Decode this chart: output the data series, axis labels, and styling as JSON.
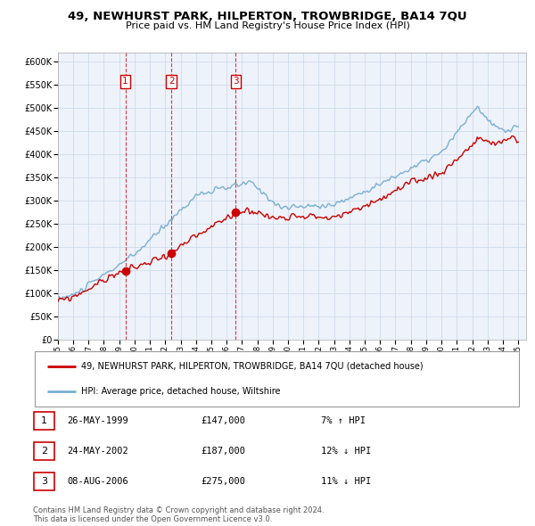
{
  "title": "49, NEWHURST PARK, HILPERTON, TROWBRIDGE, BA14 7QU",
  "subtitle": "Price paid vs. HM Land Registry's House Price Index (HPI)",
  "plot_background": "#eef2fa",
  "ylim": [
    0,
    620000
  ],
  "yticks": [
    0,
    50000,
    100000,
    150000,
    200000,
    250000,
    300000,
    350000,
    400000,
    450000,
    500000,
    550000,
    600000
  ],
  "ytick_labels": [
    "£0",
    "£50K",
    "£100K",
    "£150K",
    "£200K",
    "£250K",
    "£300K",
    "£350K",
    "£400K",
    "£450K",
    "£500K",
    "£550K",
    "£600K"
  ],
  "xlim_start": 1995.0,
  "xlim_end": 2025.5,
  "xtick_years": [
    1995,
    1996,
    1997,
    1998,
    1999,
    2000,
    2001,
    2002,
    2003,
    2004,
    2005,
    2006,
    2007,
    2008,
    2009,
    2010,
    2011,
    2012,
    2013,
    2014,
    2015,
    2016,
    2017,
    2018,
    2019,
    2020,
    2021,
    2022,
    2023,
    2024,
    2025
  ],
  "red_color": "#cc0000",
  "blue_color": "#7ab0d4",
  "grid_color": "#c8d8e8",
  "vline_years": [
    1999.4,
    2002.4,
    2006.6
  ],
  "marker_positions": [
    [
      1999.4,
      147000,
      "1"
    ],
    [
      2002.4,
      187000,
      "2"
    ],
    [
      2006.6,
      275000,
      "3"
    ]
  ],
  "legend_entries": [
    "49, NEWHURST PARK, HILPERTON, TROWBRIDGE, BA14 7QU (detached house)",
    "HPI: Average price, detached house, Wiltshire"
  ],
  "table_rows": [
    {
      "num": "1",
      "date": "26-MAY-1999",
      "price": "£147,000",
      "hpi": "7% ↑ HPI"
    },
    {
      "num": "2",
      "date": "24-MAY-2002",
      "price": "£187,000",
      "hpi": "12% ↓ HPI"
    },
    {
      "num": "3",
      "date": "08-AUG-2006",
      "price": "£275,000",
      "hpi": "11% ↓ HPI"
    }
  ],
  "footer": "Contains HM Land Registry data © Crown copyright and database right 2024.\nThis data is licensed under the Open Government Licence v3.0."
}
